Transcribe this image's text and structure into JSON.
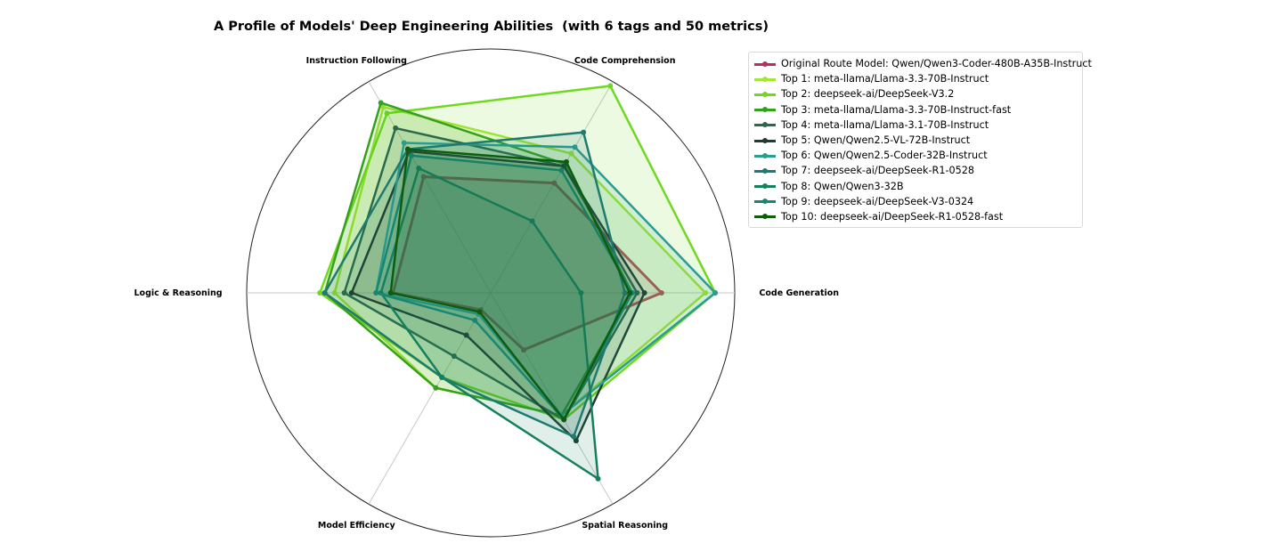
{
  "chart_data": {
    "type": "radar",
    "title": "A Profile of Models' Deep Engineering Abilities  (with 6 tags and 50 metrics)",
    "axes": [
      "Code Generation",
      "Code Comprehension",
      "Instruction Following",
      "Logic & Reasoning",
      "Model Efficiency",
      "Spatial Reasoning"
    ],
    "rlim": [
      0,
      1
    ],
    "grid": false,
    "legend_position": "right",
    "series": [
      {
        "name": "Original Route Model: Qwen/Qwen3-Coder-480B-A35B-Instruct",
        "color": "#b5305a",
        "values": [
          0.7,
          0.52,
          0.55,
          0.4,
          0.08,
          0.27
        ]
      },
      {
        "name": "Top 1: meta-llama/Llama-3.3-70B-Instruct",
        "color": "#a3e635",
        "values": [
          0.88,
          0.66,
          0.88,
          0.64,
          0.45,
          0.58
        ]
      },
      {
        "name": "Top 2: deepseek-ai/DeepSeek-V3.2",
        "color": "#6ed91f",
        "values": [
          0.92,
          0.98,
          0.85,
          0.7,
          0.4,
          0.6
        ]
      },
      {
        "name": "Top 3: meta-llama/Llama-3.3-70B-Instruct-fast",
        "color": "#35a11b",
        "values": [
          0.58,
          0.61,
          0.9,
          0.68,
          0.45,
          0.58
        ]
      },
      {
        "name": "Top 4: meta-llama/Llama-3.1-70B-Instruct",
        "color": "#2a6a4a",
        "values": [
          0.6,
          0.6,
          0.78,
          0.6,
          0.3,
          0.6
        ]
      },
      {
        "name": "Top 5: Qwen/Qwen2.5-VL-72B-Instruct",
        "color": "#1e3d2e",
        "values": [
          0.63,
          0.6,
          0.67,
          0.57,
          0.2,
          0.7
        ]
      },
      {
        "name": "Top 6: Qwen/Qwen2.5-Coder-32B-Instruct",
        "color": "#2a9d8f",
        "values": [
          0.92,
          0.69,
          0.71,
          0.47,
          0.1,
          0.58
        ]
      },
      {
        "name": "Top 7: deepseek-ai/DeepSeek-R1-0528",
        "color": "#1f7a70",
        "values": [
          0.55,
          0.76,
          0.68,
          0.68,
          0.4,
          0.68
        ]
      },
      {
        "name": "Top 8: Qwen/Qwen3-32B",
        "color": "#16805e",
        "values": [
          0.37,
          0.34,
          0.59,
          0.45,
          0.4,
          0.88
        ]
      },
      {
        "name": "Top 9: deepseek-ai/DeepSeek-V3-0324",
        "color": "#178772",
        "values": [
          0.58,
          0.58,
          0.65,
          0.47,
          0.13,
          0.6
        ]
      },
      {
        "name": "Top 10: deepseek-ai/DeepSeek-R1-0528-fast",
        "color": "#0e5c0e",
        "values": [
          0.57,
          0.62,
          0.68,
          0.41,
          0.09,
          0.6
        ]
      }
    ]
  }
}
